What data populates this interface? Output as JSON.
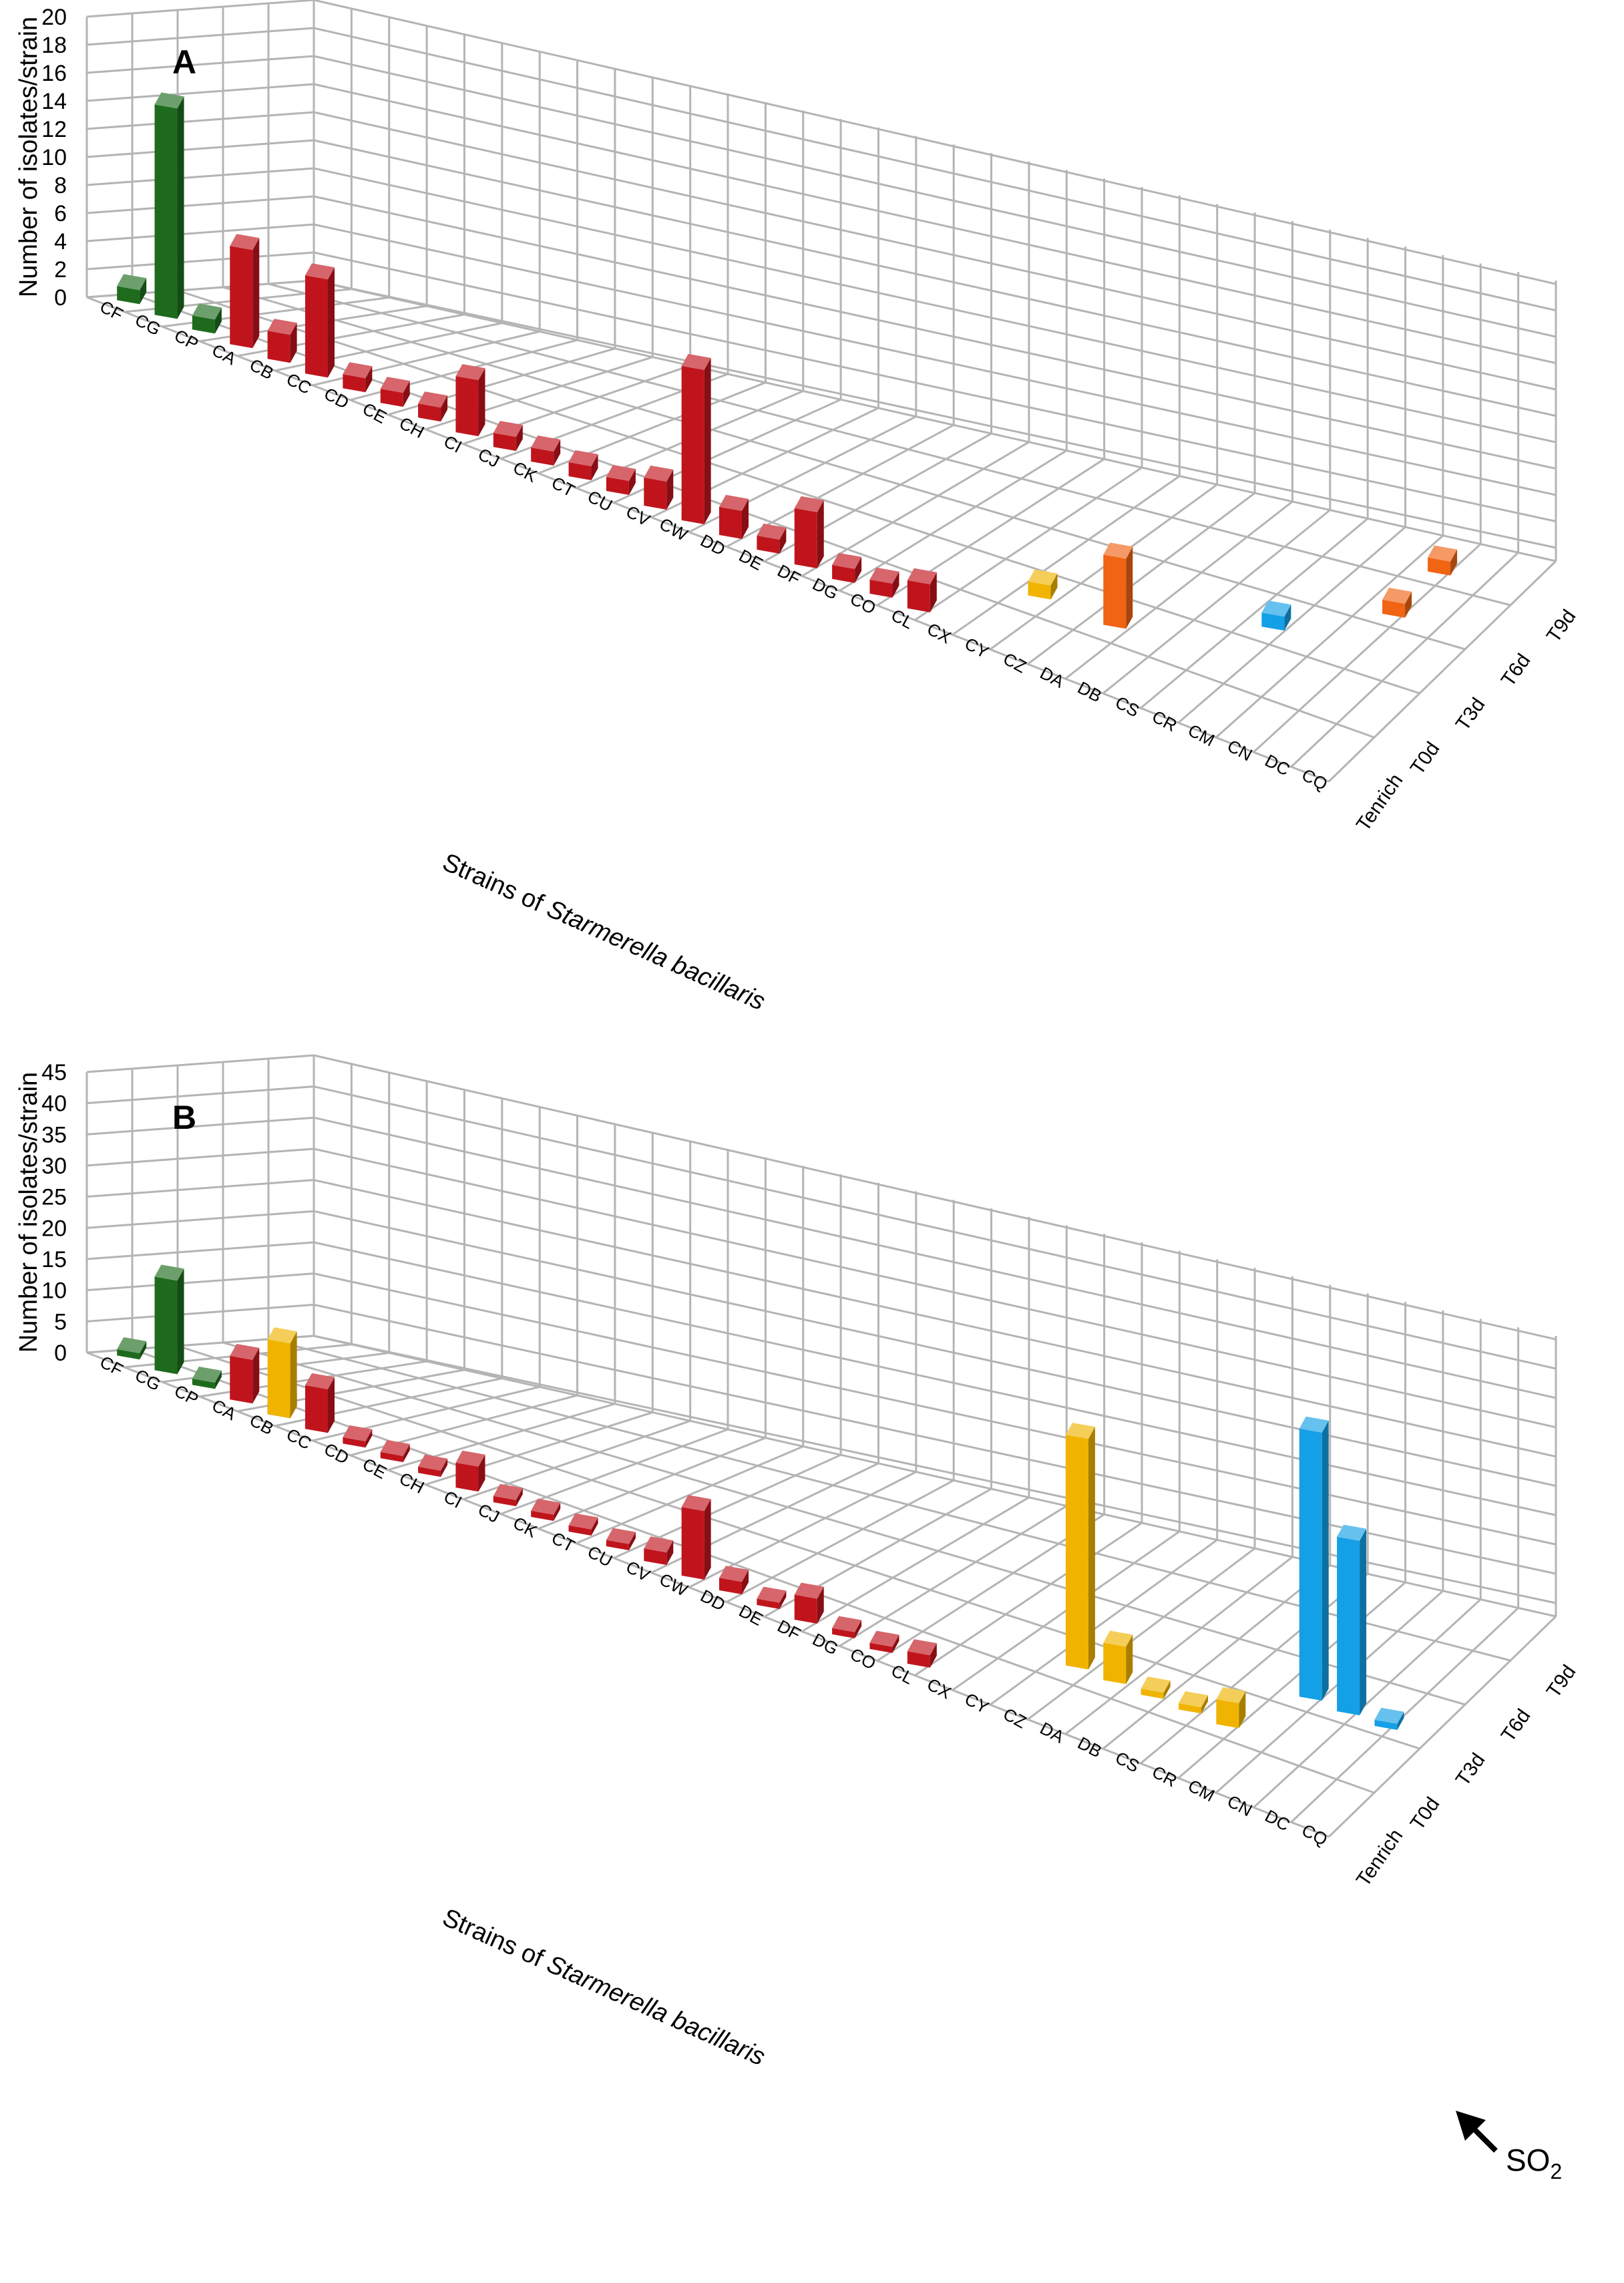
{
  "colors": {
    "green": "#1e6b1e",
    "red": "#c0141c",
    "yellow": "#f0b400",
    "orange": "#f06414",
    "blue": "#14a0e6",
    "grid": "#b4b4b4",
    "axis_text": "#000000"
  },
  "shared": {
    "strains": [
      "CF",
      "CG",
      "CP",
      "CA",
      "CB",
      "CC",
      "CD",
      "CE",
      "CH",
      "CI",
      "CJ",
      "CK",
      "CT",
      "CU",
      "CV",
      "CW",
      "DD",
      "DE",
      "DF",
      "DG",
      "CO",
      "CL",
      "CX",
      "CY",
      "CZ",
      "DA",
      "DB",
      "CS",
      "CR",
      "CM",
      "CN",
      "DC",
      "CQ"
    ],
    "stages": [
      "Tenrich",
      "T0d",
      "T3d",
      "T6d",
      "T9d"
    ],
    "xlabel_prefix": "Strains of ",
    "xlabel_species": "Starmerella bacillaris",
    "ylabel": "Number of isolates/strain",
    "so2_label": "SO",
    "so2_sub": "2"
  },
  "chart_data": [
    {
      "type": "bar",
      "panel": "A",
      "ylim": [
        0,
        20
      ],
      "yticks": [
        "0",
        "2",
        "4",
        "6",
        "8",
        "10",
        "12",
        "14",
        "16",
        "18",
        "20"
      ],
      "grid": true,
      "series": [
        {
          "stage": "Tenrich",
          "strain": "CF",
          "value": 1,
          "color": "green"
        },
        {
          "stage": "Tenrich",
          "strain": "CG",
          "value": 15,
          "color": "green"
        },
        {
          "stage": "Tenrich",
          "strain": "CP",
          "value": 1,
          "color": "green"
        },
        {
          "stage": "Tenrich",
          "strain": "CA",
          "value": 7,
          "color": "red"
        },
        {
          "stage": "Tenrich",
          "strain": "CB",
          "value": 2,
          "color": "red"
        },
        {
          "stage": "Tenrich",
          "strain": "CC",
          "value": 7,
          "color": "red"
        },
        {
          "stage": "Tenrich",
          "strain": "CD",
          "value": 1,
          "color": "red"
        },
        {
          "stage": "Tenrich",
          "strain": "CE",
          "value": 1,
          "color": "red"
        },
        {
          "stage": "Tenrich",
          "strain": "CH",
          "value": 1,
          "color": "red"
        },
        {
          "stage": "Tenrich",
          "strain": "CI",
          "value": 4,
          "color": "red"
        },
        {
          "stage": "Tenrich",
          "strain": "CJ",
          "value": 1,
          "color": "red"
        },
        {
          "stage": "Tenrich",
          "strain": "CK",
          "value": 1,
          "color": "red"
        },
        {
          "stage": "Tenrich",
          "strain": "CT",
          "value": 1,
          "color": "red"
        },
        {
          "stage": "Tenrich",
          "strain": "CU",
          "value": 1,
          "color": "red"
        },
        {
          "stage": "Tenrich",
          "strain": "CV",
          "value": 2,
          "color": "red"
        },
        {
          "stage": "Tenrich",
          "strain": "CW",
          "value": 11,
          "color": "red"
        },
        {
          "stage": "Tenrich",
          "strain": "DD",
          "value": 2,
          "color": "red"
        },
        {
          "stage": "Tenrich",
          "strain": "DE",
          "value": 1,
          "color": "red"
        },
        {
          "stage": "Tenrich",
          "strain": "DF",
          "value": 4,
          "color": "red"
        },
        {
          "stage": "Tenrich",
          "strain": "DG",
          "value": 1,
          "color": "red"
        },
        {
          "stage": "Tenrich",
          "strain": "CO",
          "value": 1,
          "color": "red"
        },
        {
          "stage": "Tenrich",
          "strain": "CL",
          "value": 2,
          "color": "red"
        },
        {
          "stage": "T0d",
          "strain": "CY",
          "value": 1,
          "color": "yellow"
        },
        {
          "stage": "T0d",
          "strain": "DA",
          "value": 5,
          "color": "orange"
        },
        {
          "stage": "T3d",
          "strain": "CR",
          "value": 1,
          "color": "blue"
        },
        {
          "stage": "T6d",
          "strain": "CN",
          "value": 1,
          "color": "orange"
        },
        {
          "stage": "T9d",
          "strain": "CN",
          "value": 1,
          "color": "orange"
        }
      ]
    },
    {
      "type": "bar",
      "panel": "B",
      "ylim": [
        0,
        45
      ],
      "yticks": [
        "0",
        "5",
        "10",
        "15",
        "20",
        "25",
        "30",
        "35",
        "40",
        "45"
      ],
      "grid": true,
      "series": [
        {
          "stage": "Tenrich",
          "strain": "CF",
          "value": 1,
          "color": "green"
        },
        {
          "stage": "Tenrich",
          "strain": "CG",
          "value": 15,
          "color": "green"
        },
        {
          "stage": "Tenrich",
          "strain": "CP",
          "value": 1,
          "color": "green"
        },
        {
          "stage": "Tenrich",
          "strain": "CA",
          "value": 7,
          "color": "red"
        },
        {
          "stage": "Tenrich",
          "strain": "CB",
          "value": 2,
          "color": "red"
        },
        {
          "stage": "Tenrich",
          "strain": "CC",
          "value": 7,
          "color": "red"
        },
        {
          "stage": "Tenrich",
          "strain": "CD",
          "value": 1,
          "color": "red"
        },
        {
          "stage": "Tenrich",
          "strain": "CE",
          "value": 1,
          "color": "red"
        },
        {
          "stage": "Tenrich",
          "strain": "CH",
          "value": 1,
          "color": "red"
        },
        {
          "stage": "Tenrich",
          "strain": "CI",
          "value": 4,
          "color": "red"
        },
        {
          "stage": "Tenrich",
          "strain": "CJ",
          "value": 1,
          "color": "red"
        },
        {
          "stage": "Tenrich",
          "strain": "CK",
          "value": 1,
          "color": "red"
        },
        {
          "stage": "Tenrich",
          "strain": "CT",
          "value": 1,
          "color": "red"
        },
        {
          "stage": "Tenrich",
          "strain": "CU",
          "value": 1,
          "color": "red"
        },
        {
          "stage": "Tenrich",
          "strain": "CV",
          "value": 2,
          "color": "red"
        },
        {
          "stage": "Tenrich",
          "strain": "CW",
          "value": 11,
          "color": "red"
        },
        {
          "stage": "Tenrich",
          "strain": "DD",
          "value": 2,
          "color": "red"
        },
        {
          "stage": "Tenrich",
          "strain": "DE",
          "value": 1,
          "color": "red"
        },
        {
          "stage": "Tenrich",
          "strain": "DF",
          "value": 4,
          "color": "red"
        },
        {
          "stage": "Tenrich",
          "strain": "DG",
          "value": 1,
          "color": "red"
        },
        {
          "stage": "Tenrich",
          "strain": "CO",
          "value": 1,
          "color": "red"
        },
        {
          "stage": "Tenrich",
          "strain": "CL",
          "value": 2,
          "color": "red"
        },
        {
          "stage": "Tenrich",
          "strain": "CB",
          "value": 12,
          "color": "yellow"
        },
        {
          "stage": "T0d",
          "strain": "CZ",
          "value": 37,
          "color": "yellow"
        },
        {
          "stage": "T0d",
          "strain": "DA",
          "value": 6,
          "color": "yellow"
        },
        {
          "stage": "T0d",
          "strain": "DB",
          "value": 1,
          "color": "yellow"
        },
        {
          "stage": "T0d",
          "strain": "CS",
          "value": 1,
          "color": "yellow"
        },
        {
          "stage": "T0d",
          "strain": "CR",
          "value": 4,
          "color": "yellow"
        },
        {
          "stage": "T3d",
          "strain": "CM",
          "value": 43,
          "color": "blue"
        },
        {
          "stage": "T3d",
          "strain": "CN",
          "value": 28,
          "color": "blue"
        },
        {
          "stage": "T3d",
          "strain": "DC",
          "value": 1,
          "color": "blue"
        }
      ]
    }
  ]
}
